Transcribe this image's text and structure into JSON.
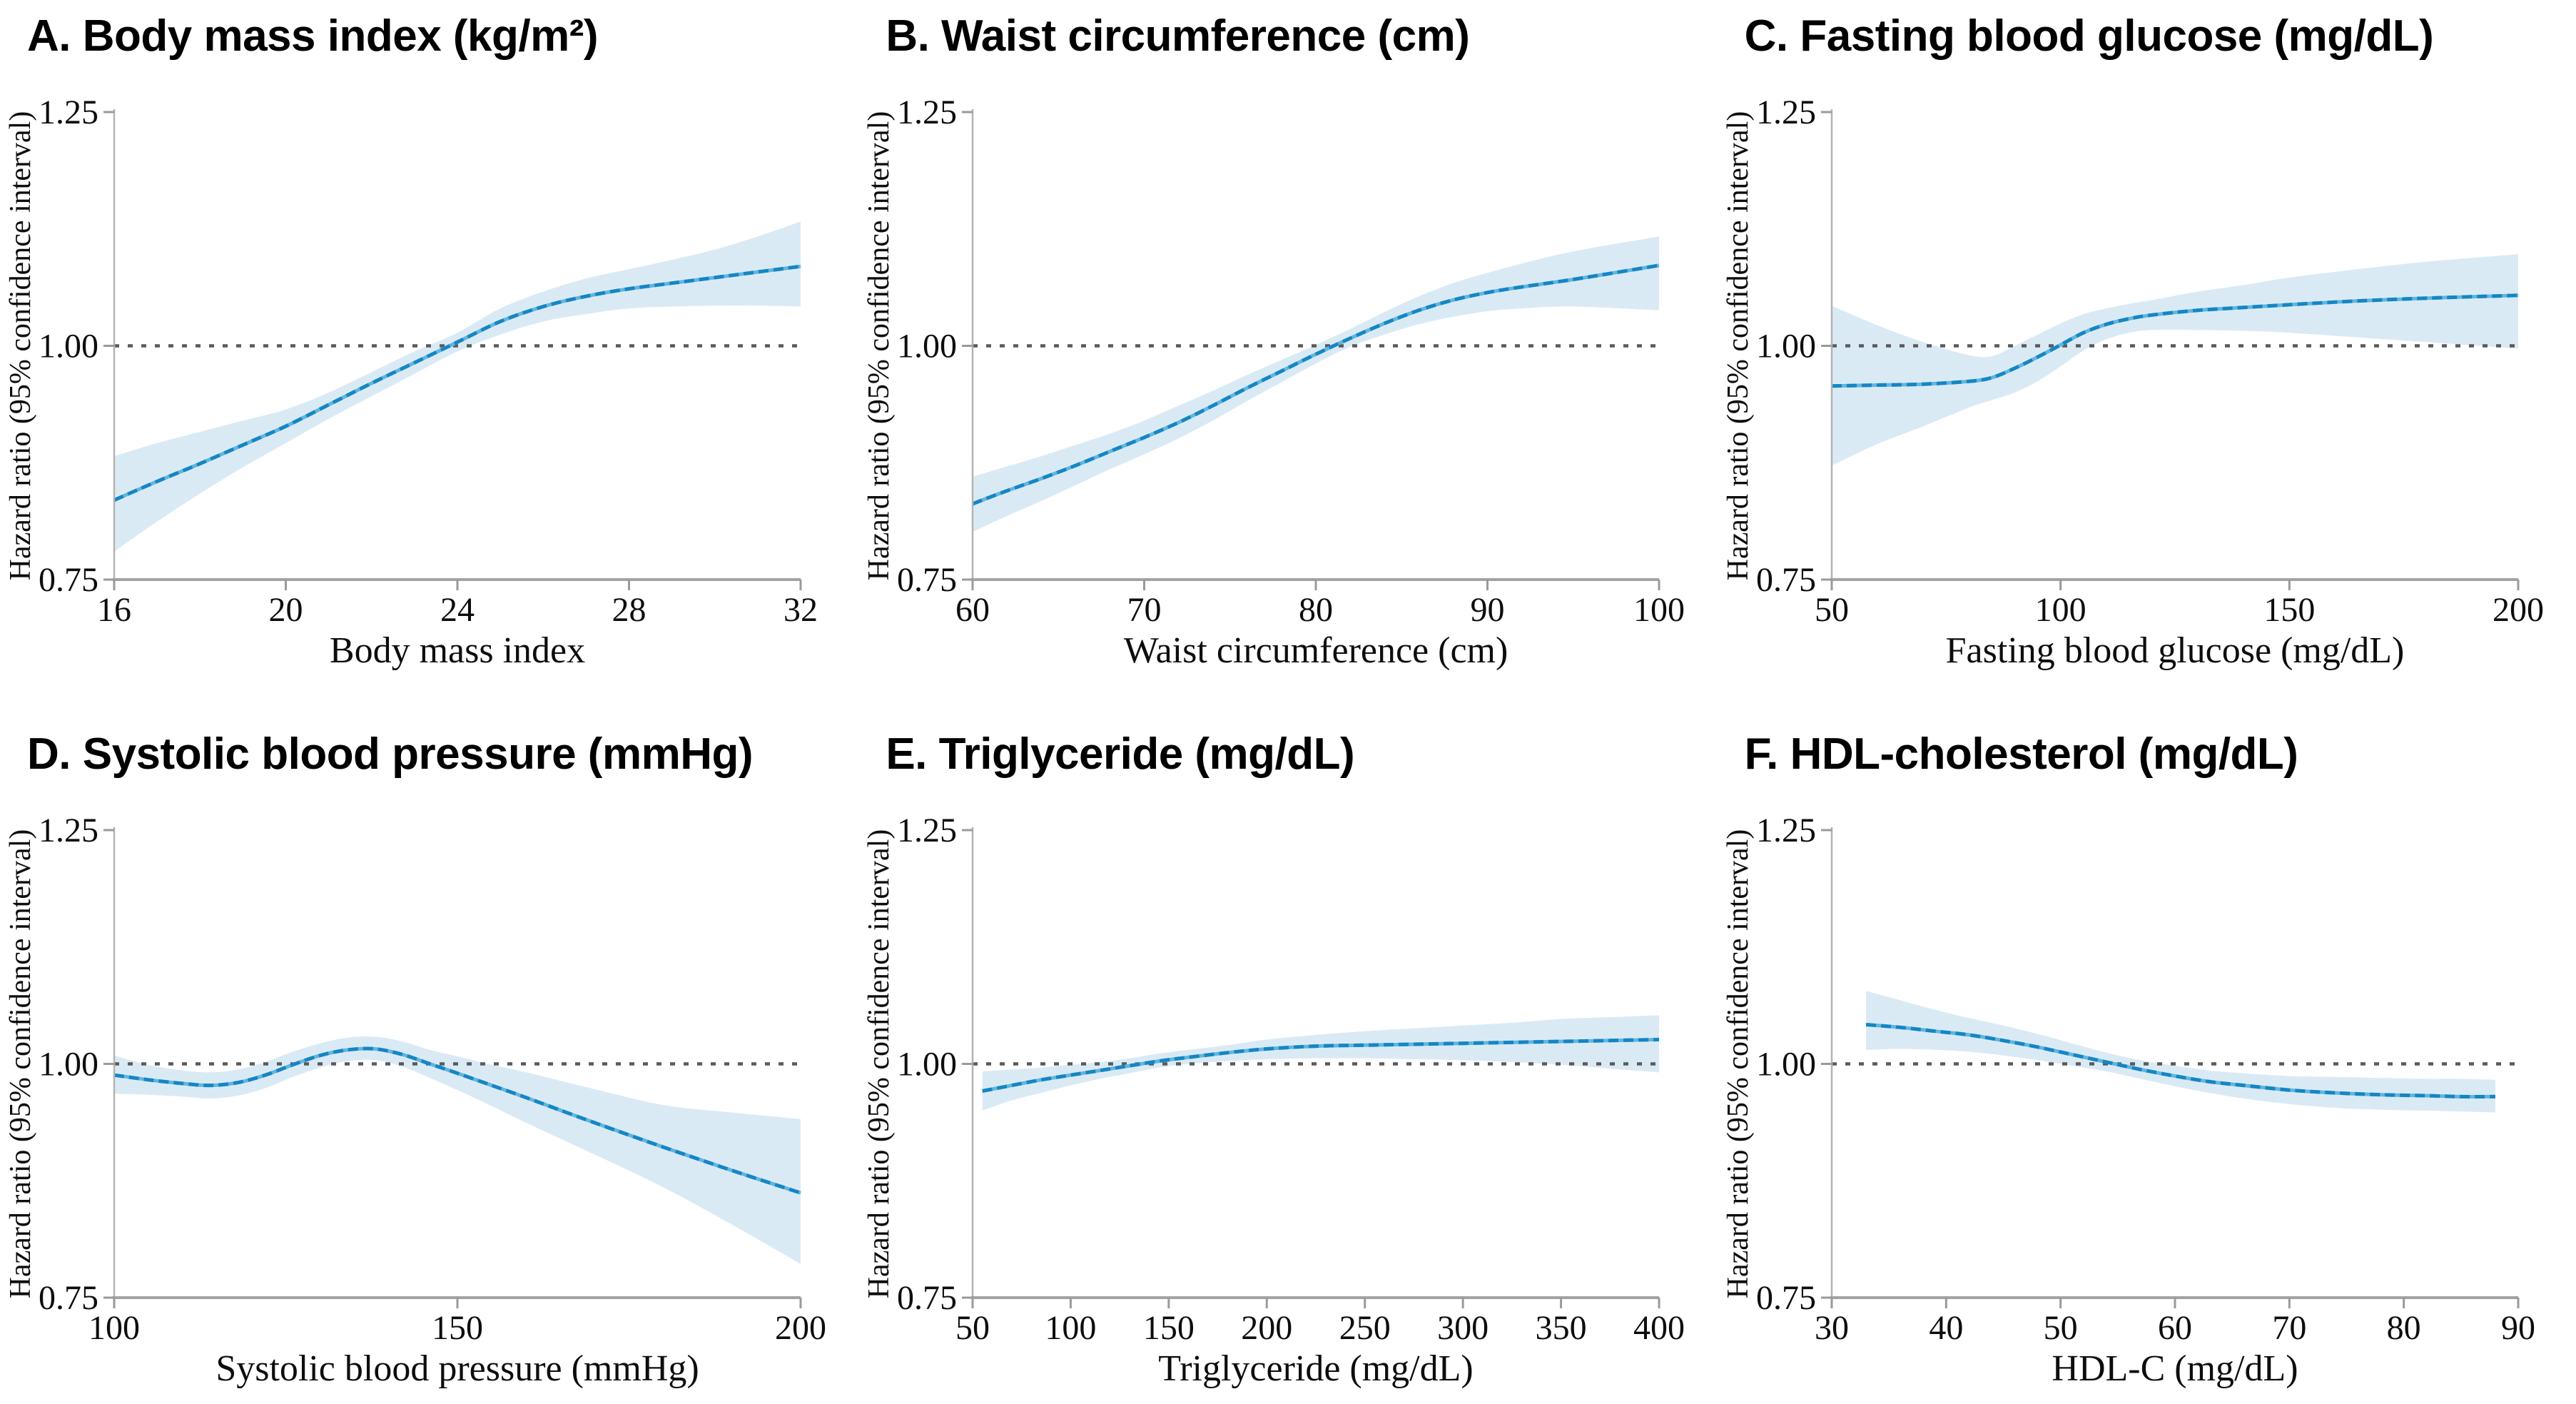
{
  "figure": {
    "background": "#ffffff",
    "ylabel": "Hazard ratio (95% confidence interval)",
    "y_tick_labels": [
      "0.75",
      "1.00",
      "1.25"
    ],
    "reference_line": 1.0,
    "colors": {
      "curve": "#1486c4",
      "curve_underlay": "#63b5dd",
      "ci_band": "#daeaf5",
      "reference_line": "#5a5a5a",
      "axis": "#a3a3a3",
      "text": "#0d0d0d"
    }
  },
  "chart_data": [
    {
      "type": "line",
      "title": "A. Body mass index (kg/m²)",
      "xlabel": "Body mass index",
      "ylabel": "Hazard ratio (95% confidence interval)",
      "xlim": [
        16,
        32
      ],
      "ylim": [
        0.75,
        1.25
      ],
      "x_ticks": [
        16,
        20,
        24,
        28,
        32
      ],
      "y_ticks": [
        0.75,
        1.0,
        1.25
      ],
      "ref_line": 1.0,
      "legend": false,
      "x": [
        16,
        17,
        18,
        19,
        20,
        21,
        22,
        23,
        24,
        25,
        26,
        27,
        28,
        29,
        30,
        31,
        32
      ],
      "hr": [
        0.835,
        0.855,
        0.874,
        0.894,
        0.914,
        0.937,
        0.96,
        0.982,
        1.004,
        1.026,
        1.042,
        1.053,
        1.061,
        1.067,
        1.073,
        1.079,
        1.085
      ],
      "ci_lower": [
        0.78,
        0.812,
        0.842,
        0.87,
        0.896,
        0.922,
        0.946,
        0.97,
        0.994,
        1.012,
        1.026,
        1.034,
        1.04,
        1.042,
        1.043,
        1.043,
        1.042
      ],
      "ci_upper": [
        0.882,
        0.896,
        0.908,
        0.92,
        0.932,
        0.95,
        0.972,
        0.994,
        1.014,
        1.04,
        1.058,
        1.072,
        1.082,
        1.092,
        1.103,
        1.117,
        1.133
      ]
    },
    {
      "type": "line",
      "title": "B. Waist circumference (cm)",
      "xlabel": "Waist circumference (cm)",
      "ylabel": "Hazard ratio (95% confidence interval)",
      "xlim": [
        60,
        100
      ],
      "ylim": [
        0.75,
        1.25
      ],
      "x_ticks": [
        60,
        70,
        80,
        90,
        100
      ],
      "y_ticks": [
        0.75,
        1.0,
        1.25
      ],
      "ref_line": 1.0,
      "legend": false,
      "x": [
        60,
        62,
        64,
        66,
        68,
        70,
        72,
        74,
        76,
        78,
        80,
        82,
        84,
        86,
        88,
        90,
        92,
        95,
        100
      ],
      "hr": [
        0.831,
        0.845,
        0.858,
        0.872,
        0.887,
        0.902,
        0.918,
        0.936,
        0.955,
        0.973,
        0.991,
        1.008,
        1.024,
        1.038,
        1.049,
        1.057,
        1.063,
        1.071,
        1.086
      ],
      "ci_lower": [
        0.801,
        0.818,
        0.834,
        0.851,
        0.868,
        0.884,
        0.901,
        0.92,
        0.941,
        0.961,
        0.981,
        0.999,
        1.012,
        1.023,
        1.031,
        1.037,
        1.04,
        1.042,
        1.038
      ],
      "ci_upper": [
        0.86,
        0.871,
        0.882,
        0.894,
        0.906,
        0.92,
        0.936,
        0.952,
        0.969,
        0.985,
        1.001,
        1.018,
        1.036,
        1.053,
        1.067,
        1.078,
        1.088,
        1.101,
        1.117
      ]
    },
    {
      "type": "line",
      "title": "C. Fasting blood glucose (mg/dL)",
      "xlabel": "Fasting blood glucose (mg/dL)",
      "ylabel": "Hazard ratio (95% confidence interval)",
      "xlim": [
        50,
        200
      ],
      "ylim": [
        0.75,
        1.25
      ],
      "x_ticks": [
        50,
        100,
        150,
        200
      ],
      "y_ticks": [
        0.75,
        1.0,
        1.25
      ],
      "ref_line": 1.0,
      "legend": false,
      "x": [
        50,
        60,
        70,
        80,
        85,
        90,
        95,
        100,
        105,
        110,
        115,
        120,
        130,
        140,
        150,
        165,
        180,
        200
      ],
      "hr": [
        0.957,
        0.958,
        0.959,
        0.962,
        0.966,
        0.976,
        0.988,
        1.001,
        1.014,
        1.023,
        1.029,
        1.033,
        1.038,
        1.041,
        1.044,
        1.048,
        1.051,
        1.054
      ],
      "ci_lower": [
        0.872,
        0.895,
        0.914,
        0.934,
        0.942,
        0.95,
        0.962,
        0.978,
        0.995,
        1.007,
        1.014,
        1.017,
        1.017,
        1.016,
        1.014,
        1.009,
        1.004,
        0.997
      ],
      "ci_upper": [
        1.043,
        1.022,
        1.004,
        0.99,
        0.989,
        1.0,
        1.012,
        1.024,
        1.034,
        1.04,
        1.045,
        1.049,
        1.058,
        1.065,
        1.073,
        1.082,
        1.09,
        1.098
      ]
    },
    {
      "type": "line",
      "title": "D. Systolic blood pressure (mmHg)",
      "xlabel": "Systolic blood pressure (mmHg)",
      "ylabel": "Hazard ratio (95% confidence interval)",
      "xlim": [
        100,
        200
      ],
      "ylim": [
        0.75,
        1.25
      ],
      "x_ticks": [
        100,
        150,
        200
      ],
      "y_ticks": [
        0.75,
        1.0,
        1.25
      ],
      "ref_line": 1.0,
      "legend": false,
      "x": [
        100,
        105,
        110,
        114,
        118,
        122,
        126,
        130,
        134,
        138,
        142,
        146,
        150,
        155,
        160,
        170,
        180,
        190,
        200
      ],
      "hr": [
        0.988,
        0.983,
        0.979,
        0.977,
        0.98,
        0.988,
        0.999,
        1.009,
        1.015,
        1.016,
        1.01,
        1.0,
        0.99,
        0.977,
        0.964,
        0.937,
        0.911,
        0.886,
        0.862
      ],
      "ci_lower": [
        0.968,
        0.967,
        0.965,
        0.963,
        0.966,
        0.974,
        0.986,
        0.996,
        1.003,
        1.004,
        0.997,
        0.985,
        0.972,
        0.955,
        0.937,
        0.903,
        0.868,
        0.828,
        0.786
      ],
      "ci_upper": [
        1.009,
        0.999,
        0.993,
        0.991,
        0.994,
        1.002,
        1.013,
        1.022,
        1.028,
        1.029,
        1.024,
        1.015,
        1.008,
        0.999,
        0.991,
        0.973,
        0.956,
        0.948,
        0.941
      ]
    },
    {
      "type": "line",
      "title": "E. Triglyceride (mg/dL)",
      "xlabel": "Triglyceride (mg/dL)",
      "ylabel": "Hazard ratio (95% confidence interval)",
      "xlim": [
        50,
        400
      ],
      "ylim": [
        0.75,
        1.25
      ],
      "x_ticks": [
        50,
        100,
        150,
        200,
        250,
        300,
        350,
        400
      ],
      "y_ticks": [
        0.75,
        1.0,
        1.25
      ],
      "ref_line": 1.0,
      "legend": false,
      "x": [
        55,
        70,
        85,
        100,
        115,
        130,
        145,
        160,
        180,
        200,
        225,
        250,
        275,
        300,
        325,
        350,
        375,
        400
      ],
      "hr": [
        0.971,
        0.977,
        0.983,
        0.988,
        0.993,
        0.998,
        1.003,
        1.007,
        1.012,
        1.016,
        1.019,
        1.02,
        1.021,
        1.022,
        1.023,
        1.024,
        1.025,
        1.026
      ],
      "ci_lower": [
        0.95,
        0.961,
        0.969,
        0.977,
        0.984,
        0.99,
        0.996,
        1.0,
        1.003,
        1.005,
        1.006,
        1.006,
        1.005,
        1.004,
        1.002,
        0.999,
        0.995,
        0.991
      ],
      "ci_upper": [
        0.992,
        0.994,
        0.996,
        0.999,
        1.002,
        1.006,
        1.011,
        1.015,
        1.02,
        1.026,
        1.031,
        1.035,
        1.038,
        1.041,
        1.044,
        1.048,
        1.05,
        1.052
      ]
    },
    {
      "type": "line",
      "title": "F. HDL-cholesterol (mg/dL)",
      "xlabel": "HDL-C (mg/dL)",
      "ylabel": "Hazard ratio (95% confidence interval)",
      "xlim": [
        30,
        90
      ],
      "ylim": [
        0.75,
        1.25
      ],
      "x_ticks": [
        30,
        40,
        50,
        60,
        70,
        80,
        90
      ],
      "y_ticks": [
        0.75,
        1.0,
        1.25
      ],
      "ref_line": 1.0,
      "legend": false,
      "x": [
        33,
        36,
        39,
        42,
        45,
        48,
        51,
        54,
        57,
        60,
        63,
        66,
        70,
        74,
        78,
        82,
        85,
        88
      ],
      "hr": [
        1.042,
        1.039,
        1.035,
        1.031,
        1.025,
        1.018,
        1.01,
        1.002,
        0.994,
        0.987,
        0.981,
        0.977,
        0.972,
        0.969,
        0.967,
        0.966,
        0.965,
        0.965
      ],
      "ci_lower": [
        1.015,
        1.016,
        1.015,
        1.013,
        1.009,
        1.004,
        0.998,
        0.992,
        0.984,
        0.976,
        0.969,
        0.963,
        0.957,
        0.953,
        0.951,
        0.95,
        0.949,
        0.948
      ],
      "ci_upper": [
        1.078,
        1.068,
        1.058,
        1.049,
        1.041,
        1.032,
        1.022,
        1.012,
        1.004,
        0.998,
        0.993,
        0.99,
        0.987,
        0.986,
        0.985,
        0.984,
        0.984,
        0.983
      ]
    }
  ]
}
